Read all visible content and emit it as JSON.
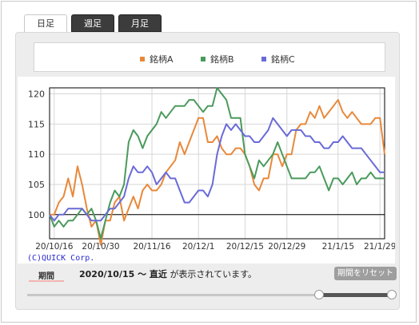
{
  "tabs": [
    {
      "label": "日足",
      "active": true
    },
    {
      "label": "週足",
      "active": false
    },
    {
      "label": "月足",
      "active": false
    }
  ],
  "legend": [
    {
      "name": "銘柄A",
      "color": "#e8883a"
    },
    {
      "name": "銘柄B",
      "color": "#4a9a5c"
    },
    {
      "name": "銘柄C",
      "color": "#6a6ad8"
    }
  ],
  "copyright": "(C)QUICK Corp.",
  "period": {
    "label": "期間",
    "range": "2020/10/15 ～ 直近",
    "suffix": "が表示されています。",
    "reset_label": "期間をリセット"
  },
  "chart_data": {
    "type": "line",
    "x_tick_labels": [
      "20/10/16",
      "20/10/30",
      "20/11/16",
      "20/12/1",
      "20/12/15",
      "20/12/29",
      "21/1/15",
      "21/1/29"
    ],
    "x_tick_index": [
      1,
      11,
      22,
      32,
      42,
      51,
      62,
      71
    ],
    "ylim": [
      96,
      121
    ],
    "yticks": [
      100,
      105,
      110,
      115,
      120
    ],
    "baseline": 100,
    "grid": true,
    "series": [
      {
        "name": "銘柄A",
        "color": "#e8883a",
        "values": [
          100,
          100,
          102,
          103,
          106,
          103,
          108,
          105,
          101,
          98,
          99,
          95,
          99,
          99,
          102,
          103,
          99,
          101,
          103,
          101,
          104,
          105,
          104,
          104,
          105,
          107,
          108,
          109,
          112,
          110,
          112,
          114,
          116,
          116,
          112,
          112,
          113,
          111,
          110,
          110,
          111,
          111,
          110,
          108,
          105,
          104,
          106,
          106,
          110,
          110,
          108,
          110,
          110,
          114,
          115,
          115,
          117,
          116,
          118,
          116,
          117,
          118,
          119,
          117,
          116,
          117,
          116,
          115,
          115,
          115,
          116,
          116,
          110
        ]
      },
      {
        "name": "銘柄B",
        "color": "#4a9a5c",
        "values": [
          100,
          98,
          99,
          98,
          99,
          99,
          100,
          101,
          100,
          101,
          99,
          96,
          99,
          102,
          104,
          103,
          105,
          112,
          114,
          113,
          111,
          113,
          114,
          115,
          117,
          116,
          117,
          118,
          118,
          118,
          119,
          119,
          118,
          117,
          118,
          118,
          121,
          120,
          119,
          116,
          116,
          116,
          110,
          108,
          106,
          109,
          108,
          109,
          110,
          112,
          110,
          108,
          106,
          106,
          106,
          106,
          107,
          107,
          108,
          106,
          104,
          106,
          106,
          105,
          106,
          107,
          105,
          106,
          106,
          107,
          106,
          106,
          106
        ]
      },
      {
        "name": "銘柄C",
        "color": "#6a6ad8",
        "values": [
          100,
          99,
          100,
          100,
          101,
          101,
          101,
          101,
          100,
          99,
          99,
          99,
          100,
          101,
          101,
          102,
          103,
          106,
          108,
          107,
          107,
          108,
          107,
          105,
          106,
          107,
          106,
          106,
          104,
          102,
          102,
          103,
          104,
          104,
          103,
          105,
          110,
          113,
          115,
          114,
          115,
          114,
          113,
          113,
          112,
          112,
          113,
          114,
          116,
          115,
          114,
          113,
          114,
          114,
          114,
          113,
          113,
          112,
          112,
          111,
          111,
          112,
          112,
          113,
          112,
          111,
          111,
          111,
          110,
          109,
          108,
          107,
          107
        ]
      }
    ]
  }
}
